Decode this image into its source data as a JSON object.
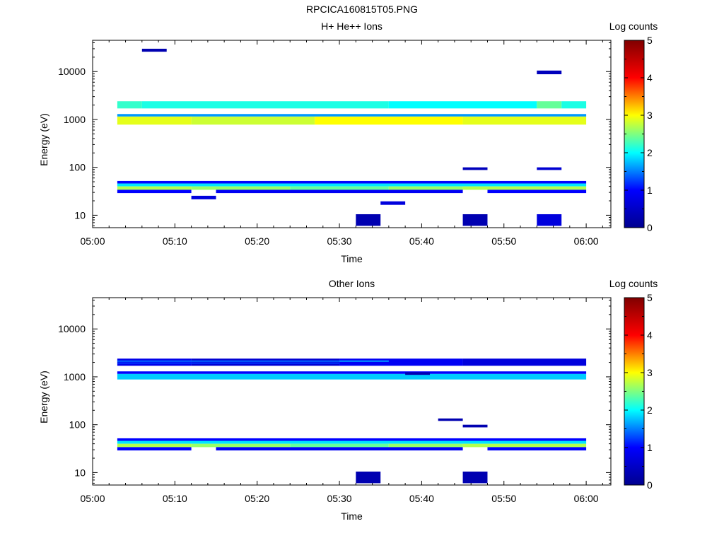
{
  "window": {
    "title": "RPCICA160815T05.PNG"
  },
  "colors": {
    "background": "#ffffff",
    "colormap": [
      "#00008f",
      "#0000ff",
      "#00ffff",
      "#ffff00",
      "#ff0000",
      "#800000"
    ]
  },
  "chart_data": [
    {
      "type": "heatmap",
      "title": "H+ He++ Ions",
      "xlabel": "Time",
      "ylabel": "Energy (eV)",
      "x_ticks": [
        "05:00",
        "05:10",
        "05:20",
        "05:30",
        "05:40",
        "05:50",
        "06:00"
      ],
      "x_range": [
        "05:00",
        "06:03"
      ],
      "y_scale": "log",
      "y_ticks": [
        "10",
        "100",
        "1000",
        "10000"
      ],
      "y_range": [
        5.5,
        45000
      ],
      "colorbar": {
        "label": "Log counts",
        "ticks": [
          "0",
          "1",
          "2",
          "3",
          "4",
          "5"
        ],
        "range": [
          0,
          5
        ]
      },
      "cells": [
        {
          "t0": "05:03",
          "t1": "05:06",
          "e0": 1700,
          "e1": 2400,
          "v": 2.2
        },
        {
          "t0": "05:06",
          "t1": "05:36",
          "e0": 1700,
          "e1": 2400,
          "v": 2.1
        },
        {
          "t0": "05:36",
          "t1": "05:54",
          "e0": 1700,
          "e1": 2400,
          "v": 2.0
        },
        {
          "t0": "05:54",
          "t1": "05:57",
          "e0": 1700,
          "e1": 2400,
          "v": 2.4
        },
        {
          "t0": "05:57",
          "t1": "06:00",
          "e0": 1700,
          "e1": 2400,
          "v": 2.1
        },
        {
          "t0": "05:03",
          "t1": "06:00",
          "e0": 1150,
          "e1": 1300,
          "v": 1.6
        },
        {
          "t0": "05:03",
          "t1": "05:12",
          "e0": 780,
          "e1": 1150,
          "v": 2.9
        },
        {
          "t0": "05:12",
          "t1": "05:27",
          "e0": 780,
          "e1": 1150,
          "v": 2.8
        },
        {
          "t0": "05:27",
          "t1": "05:45",
          "e0": 780,
          "e1": 1150,
          "v": 3.0
        },
        {
          "t0": "05:45",
          "t1": "06:00",
          "e0": 780,
          "e1": 1150,
          "v": 2.9
        },
        {
          "t0": "05:03",
          "t1": "06:00",
          "e0": 46,
          "e1": 52,
          "v": 1.0
        },
        {
          "t0": "05:03",
          "t1": "06:00",
          "e0": 40,
          "e1": 46,
          "v": 1.9
        },
        {
          "t0": "05:03",
          "t1": "05:12",
          "e0": 34,
          "e1": 40,
          "v": 2.7
        },
        {
          "t0": "05:12",
          "t1": "05:24",
          "e0": 34,
          "e1": 40,
          "v": 2.6
        },
        {
          "t0": "05:24",
          "t1": "05:36",
          "e0": 34,
          "e1": 40,
          "v": 2.4
        },
        {
          "t0": "05:36",
          "t1": "05:45",
          "e0": 34,
          "e1": 40,
          "v": 2.6
        },
        {
          "t0": "05:45",
          "t1": "06:00",
          "e0": 34,
          "e1": 40,
          "v": 2.7
        },
        {
          "t0": "05:03",
          "t1": "05:12",
          "e0": 29,
          "e1": 34,
          "v": 1.0
        },
        {
          "t0": "05:15",
          "t1": "05:45",
          "e0": 29,
          "e1": 34,
          "v": 0.9
        },
        {
          "t0": "05:48",
          "t1": "06:00",
          "e0": 29,
          "e1": 34,
          "v": 1.0
        },
        {
          "t0": "05:32",
          "t1": "05:35",
          "e0": 6,
          "e1": 10.5,
          "v": 0.3
        },
        {
          "t0": "05:45",
          "t1": "05:48",
          "e0": 6,
          "e1": 10.5,
          "v": 0.3
        },
        {
          "t0": "05:54",
          "t1": "05:57",
          "e0": 6,
          "e1": 10.5,
          "v": 0.7
        },
        {
          "t0": "05:35",
          "t1": "05:38",
          "e0": 16.5,
          "e1": 19.5,
          "v": 0.7
        },
        {
          "t0": "05:12",
          "t1": "05:15",
          "e0": 21.5,
          "e1": 25.5,
          "v": 0.7
        },
        {
          "t0": "05:06",
          "t1": "05:09",
          "e0": 26000,
          "e1": 30000,
          "v": 0.3
        },
        {
          "t0": "05:54",
          "t1": "05:57",
          "e0": 8800,
          "e1": 10500,
          "v": 0.4
        },
        {
          "t0": "05:45",
          "t1": "05:48",
          "e0": 88,
          "e1": 100,
          "v": 0.4
        },
        {
          "t0": "05:54",
          "t1": "05:57",
          "e0": 88,
          "e1": 100,
          "v": 0.6
        }
      ]
    },
    {
      "type": "heatmap",
      "title": "Other Ions",
      "xlabel": "Time",
      "ylabel": "Energy (eV)",
      "x_ticks": [
        "05:00",
        "05:10",
        "05:20",
        "05:30",
        "05:40",
        "05:50",
        "06:00"
      ],
      "x_range": [
        "05:00",
        "06:03"
      ],
      "y_scale": "log",
      "y_ticks": [
        "10",
        "100",
        "1000",
        "10000"
      ],
      "y_range": [
        5.5,
        45000
      ],
      "colorbar": {
        "label": "Log counts",
        "ticks": [
          "0",
          "1",
          "2",
          "3",
          "4",
          "5"
        ],
        "range": [
          0,
          5
        ]
      },
      "cells": [
        {
          "t0": "05:03",
          "t1": "05:12",
          "e0": 1700,
          "e1": 2400,
          "v": 0.8
        },
        {
          "t0": "05:12",
          "t1": "05:30",
          "e0": 1700,
          "e1": 2400,
          "v": 0.6
        },
        {
          "t0": "05:30",
          "t1": "05:45",
          "e0": 1700,
          "e1": 2400,
          "v": 0.9
        },
        {
          "t0": "05:45",
          "t1": "06:00",
          "e0": 1700,
          "e1": 2400,
          "v": 0.7
        },
        {
          "t0": "05:03",
          "t1": "05:30",
          "e0": 2080,
          "e1": 2200,
          "v": 1.4
        },
        {
          "t0": "05:30",
          "t1": "05:36",
          "e0": 2080,
          "e1": 2200,
          "v": 1.6
        },
        {
          "t0": "05:03",
          "t1": "05:30",
          "e0": 1900,
          "e1": 2000,
          "v": 1.2
        },
        {
          "t0": "05:03",
          "t1": "06:00",
          "e0": 1150,
          "e1": 1300,
          "v": 1.0
        },
        {
          "t0": "05:03",
          "t1": "06:00",
          "e0": 880,
          "e1": 1150,
          "v": 1.8
        },
        {
          "t0": "05:03",
          "t1": "06:00",
          "e0": 46,
          "e1": 52,
          "v": 1.0
        },
        {
          "t0": "05:03",
          "t1": "06:00",
          "e0": 40,
          "e1": 46,
          "v": 1.9
        },
        {
          "t0": "05:03",
          "t1": "05:12",
          "e0": 34,
          "e1": 40,
          "v": 2.7
        },
        {
          "t0": "05:12",
          "t1": "05:24",
          "e0": 34,
          "e1": 40,
          "v": 2.6
        },
        {
          "t0": "05:24",
          "t1": "05:36",
          "e0": 34,
          "e1": 40,
          "v": 2.4
        },
        {
          "t0": "05:36",
          "t1": "05:45",
          "e0": 34,
          "e1": 40,
          "v": 2.6
        },
        {
          "t0": "05:45",
          "t1": "06:00",
          "e0": 34,
          "e1": 40,
          "v": 2.7
        },
        {
          "t0": "05:03",
          "t1": "05:12",
          "e0": 29,
          "e1": 34,
          "v": 1.0
        },
        {
          "t0": "05:15",
          "t1": "05:45",
          "e0": 29,
          "e1": 34,
          "v": 0.9
        },
        {
          "t0": "05:48",
          "t1": "06:00",
          "e0": 29,
          "e1": 34,
          "v": 1.0
        },
        {
          "t0": "05:32",
          "t1": "05:35",
          "e0": 6,
          "e1": 10.5,
          "v": 0.3
        },
        {
          "t0": "05:45",
          "t1": "05:48",
          "e0": 6,
          "e1": 10.5,
          "v": 0.3
        },
        {
          "t0": "05:38",
          "t1": "05:41",
          "e0": 1100,
          "e1": 1250,
          "v": 0.3
        },
        {
          "t0": "05:42",
          "t1": "05:45",
          "e0": 120,
          "e1": 135,
          "v": 0.3
        },
        {
          "t0": "05:45",
          "t1": "05:48",
          "e0": 88,
          "e1": 100,
          "v": 0.3
        }
      ]
    }
  ]
}
